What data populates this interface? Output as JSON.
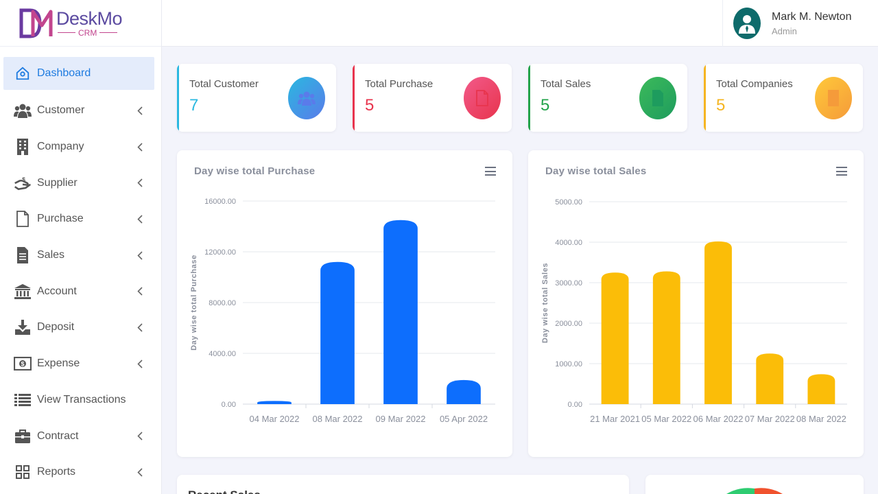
{
  "brand": {
    "name_prefix": "Desk",
    "name_suffix": "Mo",
    "sub": "CRM",
    "color": "#5b4aa0",
    "accent": "#c2458e"
  },
  "user": {
    "name": "Mark M. Newton",
    "role": "Admin"
  },
  "sidebar": {
    "items": [
      {
        "label": "Dashboard",
        "icon": "home-icon",
        "active": true,
        "chevron": false
      },
      {
        "label": "Customer",
        "icon": "users-icon",
        "chevron": true
      },
      {
        "label": "Company",
        "icon": "building-icon",
        "chevron": true
      },
      {
        "label": "Supplier",
        "icon": "hand-money-icon",
        "chevron": true
      },
      {
        "label": "Purchase",
        "icon": "file-icon",
        "chevron": true
      },
      {
        "label": "Sales",
        "icon": "file-text-icon",
        "chevron": true
      },
      {
        "label": "Account",
        "icon": "bank-icon",
        "chevron": true
      },
      {
        "label": "Deposit",
        "icon": "download-icon",
        "chevron": true
      },
      {
        "label": "Expense",
        "icon": "money-icon",
        "chevron": true
      },
      {
        "label": "View Transactions",
        "icon": "list-icon",
        "chevron": false
      },
      {
        "label": "Contract",
        "icon": "briefcase-icon",
        "chevron": true
      },
      {
        "label": "Reports",
        "icon": "grid-icon",
        "chevron": true
      }
    ]
  },
  "stats": [
    {
      "title": "Total Customer",
      "value": "7",
      "color": "#2ab8e0",
      "icon": "users-icon"
    },
    {
      "title": "Total Purchase",
      "value": "5",
      "color": "#e8344d",
      "icon": "file-icon"
    },
    {
      "title": "Total Sales",
      "value": "5",
      "color": "#22a34a",
      "icon": "file-text-icon"
    },
    {
      "title": "Total Companies",
      "value": "5",
      "color": "#f5b521",
      "icon": "building-icon"
    }
  ],
  "recent": {
    "title": "Recent Sales"
  },
  "chart_data": [
    {
      "type": "bar",
      "title": "Day wise total Purchase",
      "ylabel": "Day wise total Purchase",
      "categories": [
        "04 Mar 2022",
        "08 Mar 2022",
        "09 Mar 2022",
        "05 Apr 2022"
      ],
      "values": [
        250,
        11200,
        14500,
        1900
      ],
      "ylim": [
        0,
        16000
      ],
      "yticks": [
        "16000.00",
        "12000.00",
        "8000.00",
        "4000.00",
        "0.00"
      ],
      "color": "#0d6efd",
      "grid": true
    },
    {
      "type": "bar",
      "title": "Day wise total Sales",
      "ylabel": "Day wise total Sales",
      "categories": [
        "21 Mar 2021",
        "05 Mar 2022",
        "06 Mar 2022",
        "07 Mar 2022",
        "08 Mar 2022"
      ],
      "values": [
        3250,
        3280,
        4020,
        1250,
        740
      ],
      "ylim": [
        0,
        5000
      ],
      "yticks": [
        "5000.00",
        "4000.00",
        "3000.00",
        "2000.00",
        "1000.00",
        "0.00"
      ],
      "color": "#fbbd08",
      "grid": true
    }
  ]
}
